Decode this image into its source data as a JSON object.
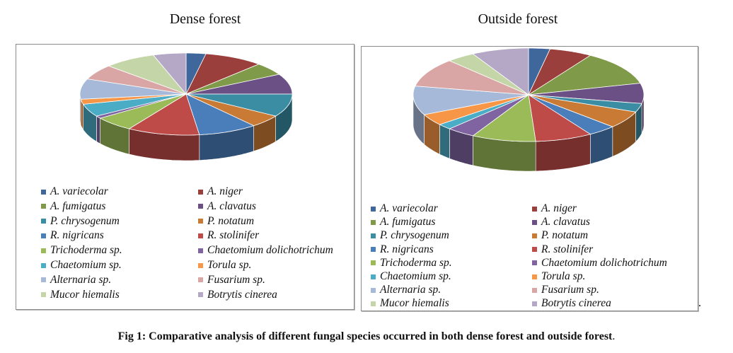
{
  "chart_data": [
    {
      "type": "pie",
      "title": "Dense forest",
      "categories": [
        "A.  variecolar",
        "A. niger",
        "A. fumigatus",
        "A. clavatus",
        "P. chrysogenum",
        "P. notatum",
        "R. nigricans",
        "R. stolinifer",
        "Trichoderma sp.",
        "Chaetomium dolichotrichum",
        "Chaetomium sp.",
        "Torula sp.",
        "Alternaria sp.",
        "Fusarium sp.",
        "Mucor hiemalis",
        "Botrytis cinerea"
      ],
      "values": [
        3,
        9,
        5,
        8,
        9,
        5,
        9,
        11,
        6,
        1,
        5,
        2,
        8,
        6,
        8,
        5
      ],
      "legend": "bottom"
    },
    {
      "type": "pie",
      "title": "Outside forest",
      "categories": [
        "A.  variecolar",
        "A. niger",
        "A. fumigatus",
        "A. clavatus",
        "P. chrysogenum",
        "P. notatum",
        "R. nigricans",
        "R. stolinifer",
        "Trichoderma sp.",
        "Chaetomium dolichotrichum",
        "Chaetomium sp.",
        "Torula sp.",
        "Alternaria sp.",
        "Fusarium sp.",
        "Mucor hiemalis",
        "Botrytis cinerea"
      ],
      "values": [
        3,
        6,
        12,
        7,
        3,
        6,
        4,
        8,
        9,
        4,
        2,
        4,
        10,
        10,
        4,
        8
      ],
      "legend": "bottom"
    }
  ],
  "colors": [
    "#40679C",
    "#9B3F3C",
    "#7F9A48",
    "#6A5085",
    "#3A8DA3",
    "#C97B35",
    "#4A7EBB",
    "#BE4B48",
    "#9BBB59",
    "#8064A2",
    "#4BACC6",
    "#F79646",
    "#A7B9D9",
    "#D9A6A5",
    "#C4D6A7",
    "#B4A8C6"
  ],
  "caption": "Fig 1: Comparative analysis of different fungal species occurred in both dense forest and outside forest",
  "caption_end": ".",
  "trailing_dot": "."
}
